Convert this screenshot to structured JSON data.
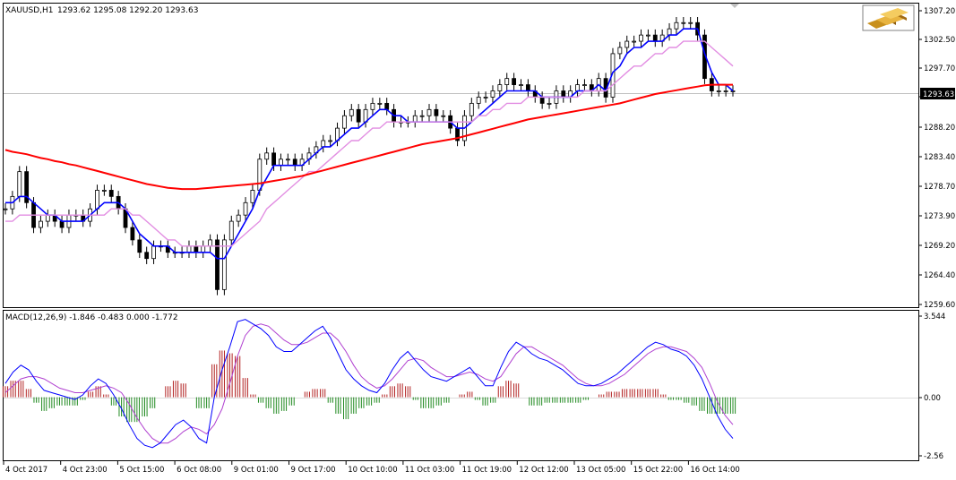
{
  "main_panel": {
    "symbol_label": "XAUUSD,H1",
    "ohlc_label": "1293.62 1295.08 1292.20 1293.63",
    "price_ticks": [
      "1307.20",
      "1302.50",
      "1297.70",
      "1293.00",
      "1288.20",
      "1283.40",
      "1278.70",
      "1273.90",
      "1269.20",
      "1264.40",
      "1259.60"
    ],
    "current_price": "1293.63"
  },
  "macd_panel": {
    "label": "MACD(12,26,9) -1.846 -0.483 0.000 -1.772",
    "ticks": [
      "3.544",
      "0.00",
      "-2.56"
    ]
  },
  "time_axis": {
    "labels": [
      "4 Oct 2017",
      "4 Oct 23:00",
      "5 Oct 15:00",
      "6 Oct 08:00",
      "9 Oct 01:00",
      "9 Oct 17:00",
      "10 Oct 10:00",
      "11 Oct 03:00",
      "11 Oct 19:00",
      "12 Oct 12:00",
      "13 Oct 05:00",
      "15 Oct 22:00",
      "16 Oct 14:00"
    ]
  },
  "colors": {
    "candles": "#000000",
    "ma_fast": "#0000ff",
    "ma_mid": "#e28ee2",
    "ma_slow": "#ff0000",
    "macd_line": "#0000ff",
    "signal_line": "#b040d0",
    "hist_pos": "#b22222",
    "hist_neg": "#228b22"
  },
  "chart_data": {
    "type": "line",
    "x_axis_type": "time",
    "ylim": [
      1259.6,
      1307.2
    ],
    "close": [
      1275,
      1277,
      1281,
      1276,
      1272,
      1273,
      1274,
      1273,
      1272,
      1274,
      1274,
      1273,
      1275,
      1278,
      1278,
      1277,
      1275,
      1272,
      1270,
      1268,
      1267,
      1269,
      1269,
      1268,
      1268,
      1268,
      1269,
      1268,
      1269,
      1270,
      1262,
      1270,
      1273,
      1274,
      1276,
      1278,
      1283,
      1284,
      1282,
      1283,
      1283,
      1282,
      1283,
      1284,
      1285,
      1286,
      1286,
      1288,
      1290,
      1291,
      1289,
      1291,
      1292,
      1292,
      1291,
      1289,
      1289,
      1289,
      1290,
      1290,
      1291,
      1290,
      1290,
      1288,
      1286,
      1290,
      1292,
      1293,
      1293,
      1294,
      1295,
      1296,
      1295,
      1295,
      1294,
      1293,
      1292,
      1292,
      1294,
      1293,
      1294,
      1295,
      1295,
      1294,
      1296,
      1293,
      1300,
      1301,
      1302,
      1302,
      1303,
      1303,
      1302,
      1303,
      1304,
      1305,
      1305,
      1305,
      1303,
      1296,
      1294,
      1294,
      1294,
      1294
    ],
    "series": [
      {
        "name": "MA fast",
        "values": [
          1276,
          1276,
          1277,
          1277,
          1276,
          1275,
          1274,
          1274,
          1273,
          1273,
          1273,
          1273,
          1274,
          1275,
          1276,
          1276,
          1276,
          1275,
          1273,
          1271,
          1270,
          1269,
          1269,
          1269,
          1268,
          1268,
          1268,
          1268,
          1268,
          1268,
          1267,
          1267,
          1269,
          1271,
          1273,
          1275,
          1278,
          1280,
          1282,
          1282,
          1282,
          1282,
          1282,
          1283,
          1284,
          1285,
          1285,
          1286,
          1287,
          1288,
          1288,
          1289,
          1290,
          1291,
          1291,
          1290,
          1290,
          1289,
          1289,
          1289,
          1289,
          1289,
          1289,
          1289,
          1288,
          1288,
          1289,
          1290,
          1291,
          1292,
          1293,
          1294,
          1294,
          1294,
          1294,
          1294,
          1293,
          1293,
          1293,
          1293,
          1293,
          1294,
          1294,
          1294,
          1295,
          1294,
          1297,
          1298,
          1300,
          1301,
          1301,
          1302,
          1302,
          1302,
          1303,
          1303,
          1304,
          1304,
          1304,
          1300,
          1297,
          1295,
          1295,
          1294
        ]
      },
      {
        "name": "MA mid",
        "values": [
          1273,
          1273,
          1274,
          1274,
          1274,
          1274,
          1274,
          1274,
          1274,
          1274,
          1274,
          1274,
          1274,
          1274,
          1274,
          1275,
          1275,
          1275,
          1274,
          1274,
          1273,
          1272,
          1271,
          1270,
          1270,
          1269,
          1269,
          1269,
          1269,
          1269,
          1269,
          1269,
          1269,
          1270,
          1271,
          1272,
          1273,
          1275,
          1276,
          1277,
          1278,
          1279,
          1280,
          1281,
          1281,
          1282,
          1283,
          1284,
          1285,
          1286,
          1286,
          1287,
          1288,
          1288,
          1289,
          1289,
          1289,
          1289,
          1289,
          1289,
          1289,
          1289,
          1289,
          1289,
          1289,
          1289,
          1289,
          1290,
          1290,
          1291,
          1291,
          1292,
          1292,
          1292,
          1293,
          1293,
          1293,
          1293,
          1293,
          1293,
          1293,
          1293,
          1294,
          1294,
          1294,
          1294,
          1295,
          1296,
          1297,
          1298,
          1298,
          1299,
          1300,
          1300,
          1301,
          1301,
          1302,
          1302,
          1302,
          1302,
          1301,
          1300,
          1299,
          1298
        ]
      },
      {
        "name": "MA slow",
        "values": [
          1284.5,
          1284.2,
          1284,
          1283.8,
          1283.5,
          1283.2,
          1283,
          1282.7,
          1282.5,
          1282.2,
          1282,
          1281.7,
          1281.4,
          1281.1,
          1280.8,
          1280.5,
          1280.2,
          1279.9,
          1279.6,
          1279.3,
          1279,
          1278.8,
          1278.6,
          1278.4,
          1278.3,
          1278.2,
          1278.2,
          1278.2,
          1278.3,
          1278.4,
          1278.5,
          1278.6,
          1278.7,
          1278.8,
          1278.9,
          1279,
          1279.1,
          1279.3,
          1279.5,
          1279.7,
          1279.9,
          1280.1,
          1280.3,
          1280.6,
          1280.9,
          1281.2,
          1281.5,
          1281.8,
          1282.1,
          1282.4,
          1282.7,
          1283,
          1283.3,
          1283.6,
          1283.9,
          1284.2,
          1284.5,
          1284.8,
          1285.1,
          1285.4,
          1285.6,
          1285.8,
          1286,
          1286.2,
          1286.4,
          1286.7,
          1287,
          1287.3,
          1287.6,
          1287.9,
          1288.2,
          1288.5,
          1288.8,
          1289.1,
          1289.4,
          1289.6,
          1289.8,
          1290,
          1290.2,
          1290.4,
          1290.6,
          1290.8,
          1291,
          1291.2,
          1291.4,
          1291.6,
          1291.8,
          1292,
          1292.3,
          1292.6,
          1292.9,
          1293.2,
          1293.5,
          1293.7,
          1293.9,
          1294.1,
          1294.3,
          1294.5,
          1294.7,
          1294.9,
          1295,
          1295,
          1295,
          1295
        ]
      }
    ],
    "macd": {
      "ylim": [
        -2.56,
        3.544
      ],
      "macd_line": [
        0.6,
        1.1,
        1.4,
        1.2,
        0.7,
        0.3,
        0.2,
        0.1,
        0.0,
        -0.1,
        0.1,
        0.5,
        0.8,
        0.6,
        0.1,
        -0.5,
        -1.2,
        -1.8,
        -2.1,
        -2.2,
        -2.0,
        -1.6,
        -1.2,
        -1.0,
        -1.3,
        -1.8,
        -2.0,
        0.0,
        1.2,
        2.2,
        3.3,
        3.4,
        3.2,
        3.0,
        2.7,
        2.2,
        2.0,
        2.0,
        2.3,
        2.6,
        2.9,
        3.1,
        2.6,
        1.9,
        1.2,
        0.8,
        0.5,
        0.3,
        0.2,
        0.6,
        1.2,
        1.7,
        2.0,
        1.6,
        1.2,
        0.9,
        0.8,
        0.7,
        0.9,
        1.1,
        1.3,
        0.9,
        0.5,
        0.5,
        1.3,
        2.0,
        2.4,
        2.2,
        1.9,
        1.7,
        1.6,
        1.4,
        1.2,
        0.9,
        0.6,
        0.5,
        0.5,
        0.6,
        0.8,
        1.0,
        1.3,
        1.6,
        1.9,
        2.2,
        2.4,
        2.3,
        2.1,
        2.0,
        1.8,
        1.4,
        0.8,
        0.0,
        -0.8,
        -1.4,
        -1.8
      ],
      "signal_line": [
        0.2,
        0.5,
        0.8,
        0.9,
        0.9,
        0.8,
        0.6,
        0.4,
        0.3,
        0.2,
        0.2,
        0.3,
        0.4,
        0.5,
        0.4,
        0.2,
        -0.3,
        -0.9,
        -1.4,
        -1.8,
        -2.0,
        -2.0,
        -1.8,
        -1.5,
        -1.3,
        -1.4,
        -1.6,
        -1.2,
        -0.5,
        0.6,
        1.8,
        2.7,
        3.1,
        3.2,
        3.1,
        2.8,
        2.5,
        2.3,
        2.3,
        2.4,
        2.6,
        2.8,
        2.8,
        2.5,
        2.0,
        1.4,
        0.9,
        0.6,
        0.4,
        0.5,
        0.8,
        1.2,
        1.6,
        1.7,
        1.6,
        1.3,
        1.1,
        0.9,
        0.9,
        1.0,
        1.1,
        1.0,
        0.8,
        0.7,
        0.9,
        1.4,
        1.9,
        2.2,
        2.2,
        2.0,
        1.8,
        1.6,
        1.4,
        1.1,
        0.8,
        0.6,
        0.5,
        0.5,
        0.6,
        0.8,
        1.0,
        1.3,
        1.6,
        1.9,
        2.1,
        2.2,
        2.2,
        2.1,
        2.0,
        1.7,
        1.3,
        0.6,
        -0.2,
        -0.8,
        -1.2
      ]
    }
  }
}
